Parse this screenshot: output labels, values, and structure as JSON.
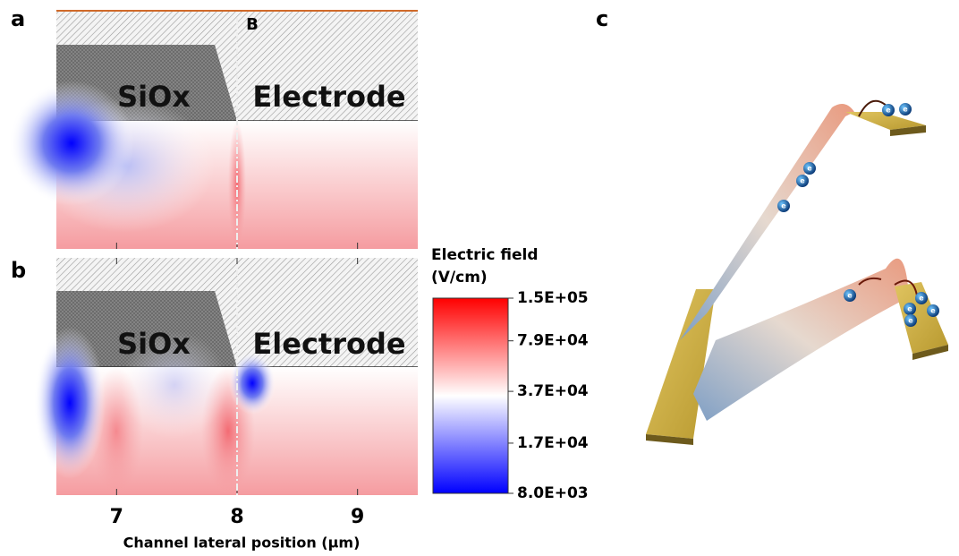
{
  "panel_labels": [
    "a",
    "b",
    "c"
  ],
  "regions": {
    "siox": "SiOx",
    "electrode": "Electrode"
  },
  "boundary_label": "B",
  "x_axis": {
    "label": "Channel lateral position (μm)",
    "xlim": [
      6.5,
      9.5
    ],
    "xticks": [
      7,
      8,
      9
    ]
  },
  "colorbar": {
    "title": [
      "Electric field",
      "(V/cm)"
    ],
    "clim": [
      8000,
      150000
    ],
    "log_scale": true,
    "colors": [
      "#0000ff",
      "#ffffff",
      "#ff0000"
    ],
    "ticks": [
      {
        "value": 150000,
        "label": "1.5E+05"
      },
      {
        "value": 79000,
        "label": "7.9E+04"
      },
      {
        "value": 37000,
        "label": "3.7E+04"
      },
      {
        "value": 17000,
        "label": "1.7E+04"
      },
      {
        "value": 8000,
        "label": "8.0E+03"
      }
    ]
  },
  "electron_symbol": "e"
}
